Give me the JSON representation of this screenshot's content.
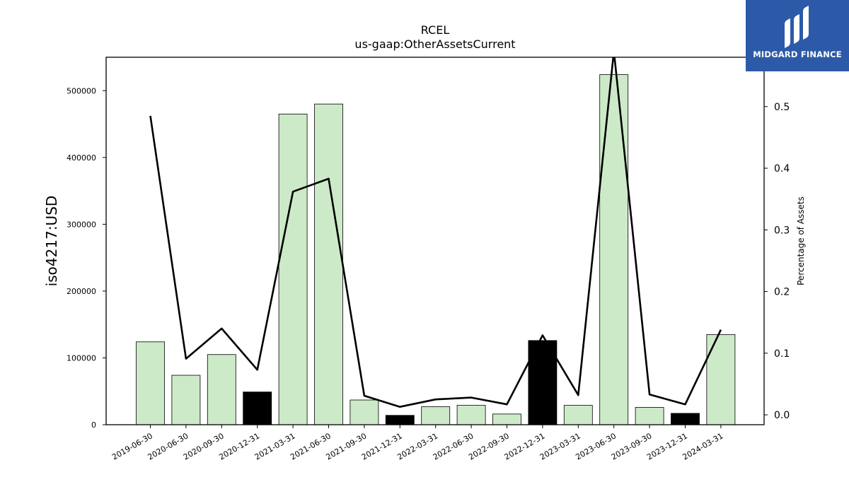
{
  "brand": {
    "name": "MIDGARD FINANCE",
    "bg": "#2c5aa8"
  },
  "chart_data": {
    "type": "bar",
    "title": "RCEL",
    "subtitle": "us-gaap:OtherAssetsCurrent",
    "ylabel": "iso4217:USD",
    "y2label": "Percentage of Assets",
    "ylim": [
      0,
      550000
    ],
    "y2lim": [
      -0.016,
      0.58
    ],
    "yticks": [
      0,
      100000,
      200000,
      300000,
      400000,
      500000
    ],
    "y2ticks": [
      0.0,
      0.1,
      0.2,
      0.3,
      0.4,
      0.5
    ],
    "categories": [
      "2019-06-30",
      "2020-06-30",
      "2020-09-30",
      "2020-12-31",
      "2021-03-31",
      "2021-06-30",
      "2021-09-30",
      "2021-12-31",
      "2022-03-31",
      "2022-06-30",
      "2022-09-30",
      "2022-12-31",
      "2023-03-31",
      "2023-06-30",
      "2023-09-30",
      "2023-12-31",
      "2024-03-31"
    ],
    "values": [
      124000,
      74000,
      105000,
      49000,
      465000,
      480000,
      37000,
      14000,
      27000,
      29000,
      16000,
      126000,
      29000,
      524000,
      26000,
      17000,
      135000
    ],
    "bar_colors": [
      "#cdeac8",
      "#cdeac8",
      "#cdeac8",
      "#000000",
      "#cdeac8",
      "#cdeac8",
      "#cdeac8",
      "#000000",
      "#cdeac8",
      "#cdeac8",
      "#cdeac8",
      "#000000",
      "#cdeac8",
      "#cdeac8",
      "#cdeac8",
      "#000000",
      "#cdeac8"
    ],
    "line_values": [
      0.485,
      0.091,
      0.14,
      0.073,
      0.362,
      0.383,
      0.031,
      0.013,
      0.025,
      0.028,
      0.017,
      0.129,
      0.032,
      0.59,
      0.033,
      0.017,
      0.138
    ],
    "line_color": "#000000"
  }
}
